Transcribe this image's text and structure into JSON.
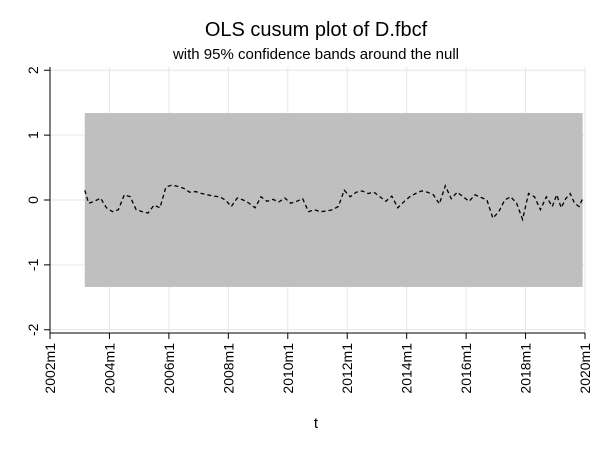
{
  "chart_data": {
    "type": "line",
    "title": "OLS cusum plot of D.fbcf",
    "subtitle": "with 95% confidence bands around the null",
    "xlabel": "t",
    "ylabel": "",
    "x_ticks": [
      "2002m1",
      "2004m1",
      "2006m1",
      "2008m1",
      "2010m1",
      "2012m1",
      "2014m1",
      "2016m1",
      "2018m1",
      "2020m1"
    ],
    "x_tick_values": [
      2002.0,
      2004.0,
      2006.0,
      2008.0,
      2010.0,
      2012.0,
      2014.0,
      2016.0,
      2018.0,
      2020.0
    ],
    "y_ticks": [
      "-2",
      "-1",
      "0",
      "1",
      "2"
    ],
    "y_tick_values": [
      -2,
      -1,
      0,
      1,
      2
    ],
    "xlim": [
      2002.0,
      2020.0
    ],
    "ylim": [
      -2.05,
      2.05
    ],
    "grid": true,
    "band": {
      "x_start": 2003.17,
      "x_end": 2019.92,
      "upper": 1.34,
      "lower": -1.34,
      "color": "#bfbfbf"
    },
    "series": [
      {
        "line_style": "dashed",
        "color": "#000000",
        "x": [
          2003.17,
          2003.3,
          2003.5,
          2003.7,
          2003.9,
          2004.1,
          2004.3,
          2004.5,
          2004.7,
          2004.9,
          2005.1,
          2005.3,
          2005.5,
          2005.7,
          2005.9,
          2006.1,
          2006.3,
          2006.5,
          2006.7,
          2006.9,
          2007.1,
          2007.3,
          2007.5,
          2007.7,
          2007.9,
          2008.1,
          2008.3,
          2008.5,
          2008.7,
          2008.9,
          2009.1,
          2009.3,
          2009.5,
          2009.7,
          2009.9,
          2010.1,
          2010.3,
          2010.5,
          2010.7,
          2010.9,
          2011.1,
          2011.3,
          2011.5,
          2011.7,
          2011.9,
          2012.1,
          2012.3,
          2012.5,
          2012.7,
          2012.9,
          2013.1,
          2013.3,
          2013.5,
          2013.7,
          2013.9,
          2014.1,
          2014.3,
          2014.5,
          2014.7,
          2014.9,
          2015.1,
          2015.3,
          2015.5,
          2015.7,
          2015.9,
          2016.1,
          2016.3,
          2016.5,
          2016.7,
          2016.9,
          2017.1,
          2017.3,
          2017.5,
          2017.7,
          2017.9,
          2018.1,
          2018.3,
          2018.5,
          2018.7,
          2018.9,
          2019.05,
          2019.2,
          2019.35,
          2019.5,
          2019.65,
          2019.8,
          2019.92
        ],
        "y": [
          0.15,
          -0.05,
          -0.02,
          0.03,
          -0.12,
          -0.18,
          -0.15,
          0.08,
          0.05,
          -0.15,
          -0.18,
          -0.2,
          -0.08,
          -0.12,
          0.2,
          0.23,
          0.21,
          0.18,
          0.12,
          0.13,
          0.1,
          0.08,
          0.06,
          0.05,
          0.0,
          -0.1,
          0.03,
          0.0,
          -0.05,
          -0.12,
          0.05,
          -0.02,
          0.01,
          -0.03,
          0.03,
          -0.05,
          -0.02,
          0.02,
          -0.18,
          -0.15,
          -0.18,
          -0.17,
          -0.15,
          -0.1,
          0.15,
          0.05,
          0.12,
          0.14,
          0.1,
          0.12,
          0.05,
          -0.02,
          0.06,
          -0.12,
          -0.03,
          0.05,
          0.1,
          0.14,
          0.12,
          0.08,
          -0.06,
          0.22,
          0.02,
          0.12,
          0.05,
          -0.02,
          0.08,
          0.04,
          0.0,
          -0.28,
          -0.18,
          0.0,
          0.05,
          -0.05,
          -0.3,
          0.1,
          0.05,
          -0.15,
          0.05,
          -0.1,
          0.08,
          -0.12,
          0.02,
          0.1,
          -0.05,
          -0.1,
          0.02
        ]
      }
    ]
  }
}
